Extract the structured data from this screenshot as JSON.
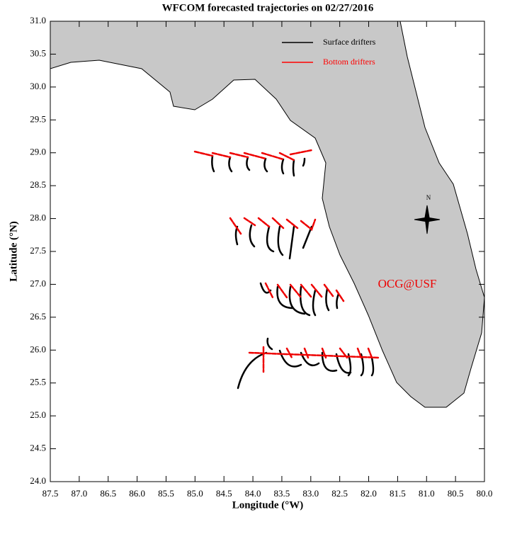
{
  "chart_data": {
    "type": "map",
    "title": "WFCOM forecasted trajectories on 02/27/2016",
    "x_label": "Longitude (°W)",
    "y_label": "Latitude (°N)",
    "xlim": [
      87.5,
      80.0
    ],
    "xticks": [
      87.5,
      {
        "value": 87,
        "label": "87.0"
      },
      86.5,
      {
        "value": 86,
        "label": "86.0"
      },
      85.5,
      {
        "value": 85,
        "label": "85.0"
      },
      84.5,
      {
        "value": 84,
        "label": "84.0"
      },
      83.5,
      {
        "value": 83,
        "label": "83.0"
      },
      82.5,
      {
        "value": 82,
        "label": "82.0"
      },
      81.5,
      {
        "value": 81,
        "label": "81.0"
      },
      80.5,
      {
        "value": 80,
        "label": "80.0"
      }
    ],
    "ylim": [
      24.0,
      31.0
    ],
    "yticks": [
      {
        "value": 24,
        "label": "24.0"
      },
      24.5,
      {
        "value": 25,
        "label": "25.0"
      },
      25.5,
      {
        "value": 26,
        "label": "26.0"
      },
      26.5,
      {
        "value": 27,
        "label": "27.0"
      },
      27.5,
      {
        "value": 28,
        "label": "28.0"
      },
      28.5,
      {
        "value": 29,
        "label": "29.0"
      },
      29.5,
      {
        "value": 30,
        "label": "30.0"
      },
      30.5,
      {
        "value": 31,
        "label": "31.0"
      }
    ],
    "series": [
      {
        "name": "Surface drifters",
        "color": "#000000"
      },
      {
        "name": "Bottom drifters",
        "color": "#ff0000"
      }
    ],
    "annotation": "OCG@USF",
    "compass_label": "N"
  }
}
